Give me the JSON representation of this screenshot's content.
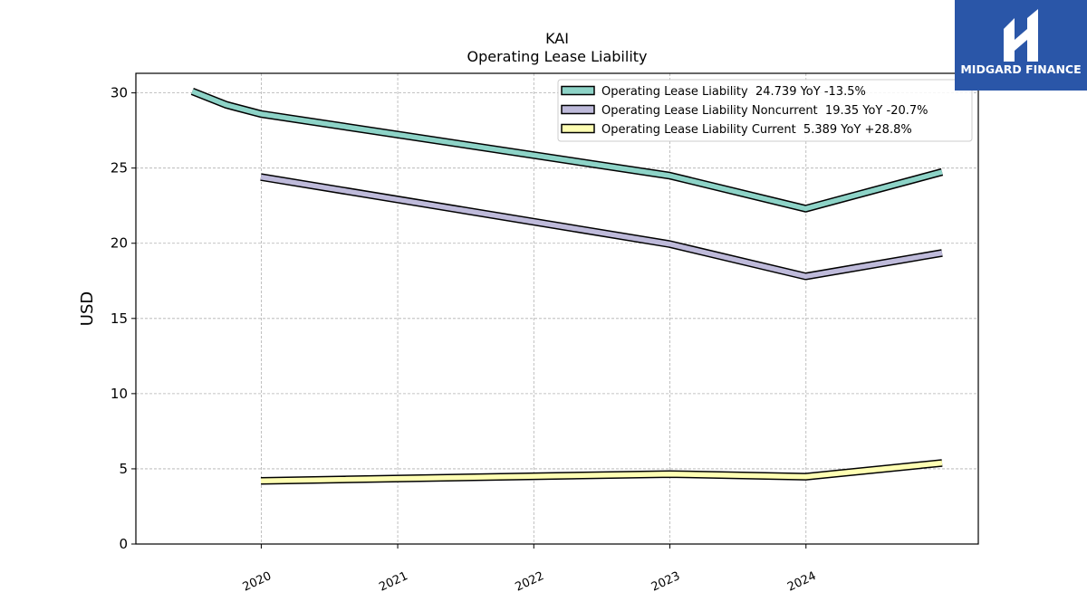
{
  "chart_data": {
    "type": "line",
    "title": "KAI",
    "subtitle": "Operating Lease Liability",
    "ylabel": "USD",
    "xlabel": "",
    "ylim": [
      0,
      31.3
    ],
    "yticks": [
      0,
      5,
      10,
      15,
      20,
      25,
      30
    ],
    "xticks": [
      "2020",
      "2021",
      "2022",
      "2023",
      "2024"
    ],
    "grid": true,
    "legend_position": "top-right",
    "series": [
      {
        "name": "Operating Lease Liability  24.739 YoY -13.5%",
        "color": "#8dd3c7",
        "points": [
          [
            "2019-06-30",
            30.1
          ],
          [
            "2019-09-30",
            29.2
          ],
          [
            "2019-12-31",
            28.6
          ],
          [
            "2022-12-31",
            24.5
          ],
          [
            "2023-12-31",
            22.3
          ],
          [
            "2024-12-31",
            24.739
          ]
        ]
      },
      {
        "name": "Operating Lease Liability Noncurrent  19.35 YoY -20.7%",
        "color": "#bebada",
        "points": [
          [
            "2019-12-31",
            24.4
          ],
          [
            "2022-12-31",
            19.95
          ],
          [
            "2023-12-31",
            17.8
          ],
          [
            "2024-12-31",
            19.35
          ]
        ]
      },
      {
        "name": "Operating Lease Liability Current  5.389 YoY +28.8%",
        "color": "#ffffb3",
        "points": [
          [
            "2019-12-31",
            4.2
          ],
          [
            "2022-12-31",
            4.65
          ],
          [
            "2023-12-31",
            4.48
          ],
          [
            "2024-12-31",
            5.389
          ]
        ]
      }
    ]
  },
  "logo": {
    "text": "MIDGARD FINANCE"
  }
}
